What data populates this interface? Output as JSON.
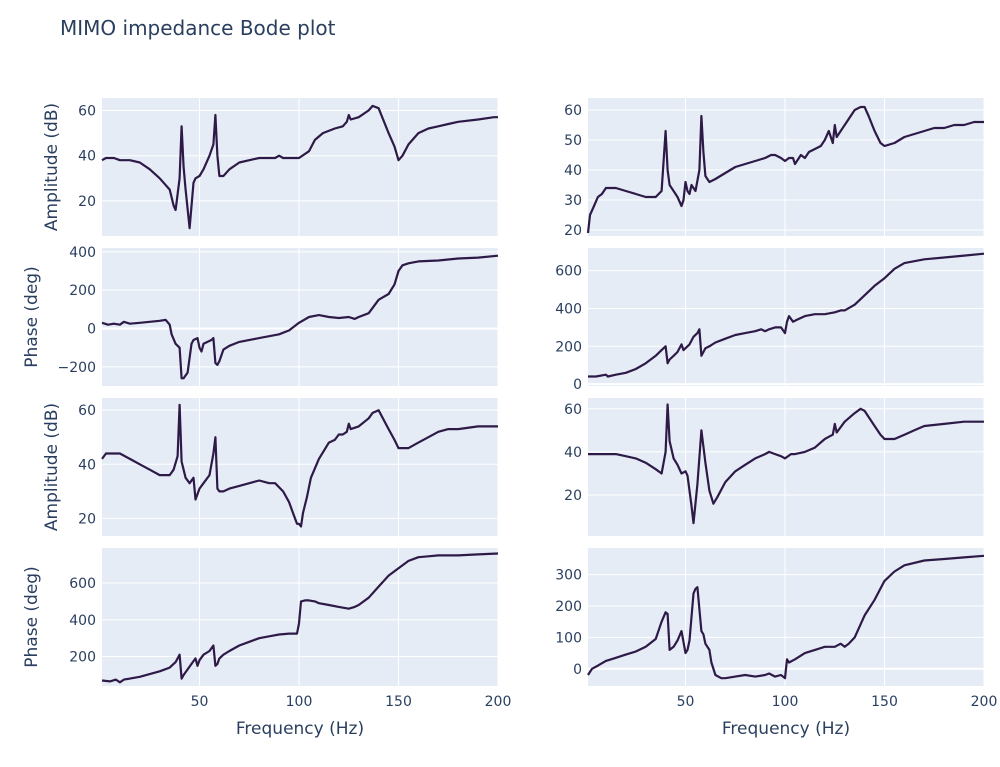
{
  "title": "MIMO impedance Bode plot",
  "colors": {
    "trace": "#2e1a47",
    "panel_bg": "#e5ecf6",
    "text": "#2a3f5f"
  },
  "chart_data": [
    {
      "type": "line",
      "row": 0,
      "col": 0,
      "ylabel": "Amplitude (dB)",
      "xlabel": "",
      "xlim": [
        1,
        200
      ],
      "ylim": [
        4.5,
        65.5
      ],
      "yticks": [
        20,
        40,
        60
      ],
      "xticks": [
        50,
        100,
        150,
        200
      ],
      "show_xticks": false,
      "x": [
        1,
        3,
        7,
        10,
        15,
        20,
        25,
        30,
        35,
        37,
        38,
        40,
        41,
        42,
        43,
        45,
        47,
        48,
        50,
        52,
        55,
        57,
        58,
        59,
        60,
        62,
        65,
        70,
        75,
        80,
        85,
        88,
        90,
        92,
        95,
        100,
        105,
        108,
        112,
        118,
        122,
        124,
        125,
        126,
        130,
        135,
        137,
        140,
        145,
        148,
        150,
        152,
        155,
        160,
        165,
        170,
        175,
        180,
        190,
        198,
        200
      ],
      "y": [
        38,
        39,
        39,
        38,
        38,
        37,
        34,
        30,
        25,
        18,
        16,
        30,
        53,
        35,
        25,
        8,
        28,
        30,
        31,
        34,
        40,
        45,
        58,
        40,
        31,
        31,
        34,
        37,
        38,
        39,
        39,
        39,
        40,
        39,
        39,
        39,
        42,
        47,
        50,
        52,
        53,
        55,
        58,
        56,
        57,
        60,
        62,
        61,
        50,
        44,
        38,
        40,
        45,
        50,
        52,
        53,
        54,
        55,
        56,
        57,
        57
      ]
    },
    {
      "type": "line",
      "row": 0,
      "col": 1,
      "ylabel": "",
      "xlabel": "",
      "xlim": [
        1,
        200
      ],
      "ylim": [
        18,
        64
      ],
      "yticks": [
        20,
        30,
        40,
        50,
        60
      ],
      "xticks": [
        50,
        100,
        150,
        200
      ],
      "show_xticks": false,
      "x": [
        1,
        2,
        4,
        6,
        8,
        10,
        15,
        20,
        25,
        30,
        35,
        38,
        40,
        41,
        42,
        44,
        46,
        48,
        49,
        50,
        51,
        52,
        53,
        55,
        57,
        58,
        59,
        60,
        62,
        65,
        70,
        75,
        80,
        85,
        90,
        93,
        95,
        98,
        100,
        102,
        104,
        105,
        108,
        110,
        112,
        115,
        118,
        120,
        122,
        124,
        125,
        126,
        128,
        130,
        135,
        138,
        140,
        142,
        145,
        148,
        150,
        155,
        160,
        165,
        170,
        175,
        180,
        185,
        190,
        195,
        200
      ],
      "y": [
        19,
        25,
        28,
        31,
        32,
        34,
        34,
        33,
        32,
        31,
        31,
        33,
        53,
        40,
        35,
        33,
        31,
        28,
        30,
        36,
        33,
        32,
        35,
        33,
        40,
        58,
        46,
        38,
        36,
        37,
        39,
        41,
        42,
        43,
        44,
        45,
        45,
        44,
        43,
        44,
        44,
        42,
        45,
        44,
        46,
        47,
        48,
        50,
        53,
        49,
        55,
        51,
        53,
        55,
        60,
        61,
        61,
        58,
        53,
        49,
        48,
        49,
        51,
        52,
        53,
        54,
        54,
        55,
        55,
        56,
        56
      ]
    },
    {
      "type": "line",
      "row": 1,
      "col": 0,
      "ylabel": "Phase (deg)",
      "xlabel": "",
      "xlim": [
        1,
        200
      ],
      "ylim": [
        -300,
        420
      ],
      "yticks": [
        -200,
        0,
        200,
        400
      ],
      "ytick_labels": [
        "−200",
        "0",
        "200",
        "400"
      ],
      "xticks": [
        50,
        100,
        150,
        200
      ],
      "show_xticks": false,
      "x": [
        1,
        4,
        7,
        10,
        12,
        15,
        20,
        30,
        33,
        35,
        36,
        38,
        40,
        41,
        42,
        44,
        46,
        47,
        49,
        50,
        51,
        52,
        54,
        56,
        57,
        58,
        59,
        60,
        62,
        65,
        70,
        80,
        90,
        95,
        100,
        105,
        110,
        115,
        120,
        125,
        128,
        130,
        135,
        140,
        145,
        148,
        150,
        152,
        155,
        160,
        170,
        180,
        190,
        200
      ],
      "y": [
        30,
        20,
        25,
        20,
        35,
        25,
        30,
        40,
        45,
        20,
        -30,
        -80,
        -100,
        -260,
        -260,
        -230,
        -80,
        -60,
        -50,
        -100,
        -120,
        -80,
        -70,
        -60,
        -50,
        -180,
        -190,
        -170,
        -110,
        -90,
        -70,
        -50,
        -30,
        -10,
        30,
        60,
        70,
        60,
        55,
        60,
        50,
        60,
        80,
        150,
        180,
        230,
        300,
        330,
        340,
        350,
        355,
        365,
        370,
        380
      ]
    },
    {
      "type": "line",
      "row": 1,
      "col": 1,
      "ylabel": "",
      "xlabel": "",
      "xlim": [
        1,
        200
      ],
      "ylim": [
        -10,
        720
      ],
      "yticks": [
        0,
        200,
        400,
        600
      ],
      "xticks": [
        50,
        100,
        150,
        200
      ],
      "show_xticks": false,
      "x": [
        1,
        5,
        10,
        11,
        15,
        20,
        25,
        30,
        35,
        38,
        40,
        41,
        42,
        44,
        46,
        48,
        49,
        50,
        52,
        54,
        56,
        57,
        58,
        59,
        60,
        62,
        65,
        70,
        75,
        80,
        85,
        88,
        90,
        92,
        95,
        98,
        100,
        101,
        102,
        104,
        106,
        110,
        115,
        120,
        125,
        128,
        130,
        135,
        140,
        145,
        150,
        155,
        160,
        165,
        170,
        180,
        190,
        200
      ],
      "y": [
        40,
        40,
        50,
        40,
        50,
        60,
        80,
        110,
        150,
        180,
        200,
        110,
        130,
        150,
        170,
        210,
        180,
        190,
        210,
        250,
        270,
        290,
        150,
        170,
        190,
        200,
        220,
        240,
        260,
        270,
        280,
        290,
        280,
        290,
        300,
        300,
        270,
        330,
        360,
        330,
        340,
        360,
        370,
        370,
        380,
        390,
        390,
        420,
        470,
        520,
        560,
        610,
        640,
        650,
        660,
        670,
        680,
        690
      ]
    },
    {
      "type": "line",
      "row": 2,
      "col": 0,
      "ylabel": "Amplitude (dB)",
      "xlabel": "",
      "xlim": [
        1,
        200
      ],
      "ylim": [
        13.5,
        64.5
      ],
      "yticks": [
        20,
        40,
        60
      ],
      "xticks": [
        50,
        100,
        150,
        200
      ],
      "show_xticks": false,
      "x": [
        1,
        3,
        5,
        10,
        15,
        20,
        25,
        30,
        35,
        37,
        39,
        40,
        41,
        42,
        43,
        45,
        47,
        48,
        49,
        50,
        52,
        55,
        57,
        58,
        59,
        60,
        62,
        65,
        70,
        75,
        80,
        85,
        88,
        92,
        95,
        97,
        99,
        100,
        101,
        102,
        104,
        106,
        110,
        115,
        118,
        120,
        122,
        124,
        125,
        126,
        130,
        135,
        137,
        140,
        145,
        148,
        150,
        155,
        160,
        165,
        170,
        175,
        180,
        190,
        200
      ],
      "y": [
        42,
        44,
        44,
        44,
        42,
        40,
        38,
        36,
        36,
        38,
        43,
        62,
        41,
        38,
        35,
        33,
        35,
        27,
        29,
        31,
        33,
        36,
        44,
        50,
        31,
        30,
        30,
        31,
        32,
        33,
        34,
        33,
        33,
        30,
        26,
        22,
        18,
        18,
        17,
        22,
        28,
        35,
        42,
        48,
        49,
        51,
        51,
        52,
        55,
        53,
        54,
        57,
        59,
        60,
        53,
        49,
        46,
        46,
        48,
        50,
        52,
        53,
        53,
        54,
        54
      ]
    },
    {
      "type": "line",
      "row": 2,
      "col": 1,
      "ylabel": "",
      "xlabel": "",
      "xlim": [
        1,
        200
      ],
      "ylim": [
        1,
        65
      ],
      "yticks": [
        20,
        40,
        60
      ],
      "xticks": [
        50,
        100,
        150,
        200
      ],
      "show_xticks": false,
      "x": [
        1,
        5,
        10,
        15,
        20,
        25,
        30,
        35,
        38,
        40,
        41,
        42,
        44,
        46,
        48,
        50,
        51,
        52,
        53,
        54,
        56,
        58,
        60,
        62,
        64,
        66,
        70,
        75,
        80,
        85,
        90,
        92,
        95,
        98,
        100,
        103,
        105,
        110,
        115,
        120,
        122,
        124,
        125,
        126,
        130,
        135,
        138,
        140,
        145,
        148,
        150,
        155,
        160,
        165,
        170,
        180,
        190,
        200
      ],
      "y": [
        39,
        39,
        39,
        39,
        38,
        37,
        35,
        32,
        30,
        40,
        62,
        45,
        37,
        34,
        30,
        31,
        29,
        22,
        15,
        7,
        25,
        50,
        35,
        22,
        16,
        19,
        26,
        31,
        34,
        37,
        39,
        40,
        39,
        38,
        37,
        39,
        39,
        40,
        42,
        46,
        47,
        48,
        53,
        49,
        54,
        58,
        60,
        59,
        52,
        48,
        46,
        46,
        48,
        50,
        52,
        53,
        54,
        54
      ]
    },
    {
      "type": "line",
      "row": 3,
      "col": 0,
      "ylabel": "Phase (deg)",
      "xlabel": "Frequency (Hz)",
      "xlim": [
        1,
        200
      ],
      "ylim": [
        40,
        790
      ],
      "yticks": [
        200,
        400,
        600
      ],
      "xticks": [
        50,
        100,
        150,
        200
      ],
      "show_xticks": true,
      "x": [
        1,
        5,
        8,
        10,
        12,
        15,
        20,
        30,
        35,
        38,
        40,
        41,
        42,
        44,
        46,
        48,
        49,
        50,
        52,
        55,
        57,
        58,
        59,
        60,
        62,
        65,
        70,
        75,
        80,
        85,
        90,
        95,
        99,
        100,
        101,
        103,
        105,
        108,
        110,
        115,
        120,
        125,
        128,
        130,
        135,
        140,
        145,
        150,
        155,
        160,
        165,
        170,
        180,
        190,
        200
      ],
      "y": [
        70,
        65,
        75,
        60,
        75,
        80,
        90,
        120,
        140,
        170,
        210,
        80,
        100,
        130,
        160,
        190,
        150,
        180,
        210,
        230,
        260,
        150,
        160,
        190,
        210,
        230,
        260,
        280,
        300,
        310,
        320,
        325,
        325,
        380,
        500,
        505,
        505,
        500,
        490,
        480,
        470,
        460,
        470,
        480,
        520,
        580,
        640,
        680,
        720,
        740,
        745,
        750,
        750,
        755,
        760
      ]
    },
    {
      "type": "line",
      "row": 3,
      "col": 1,
      "ylabel": "",
      "xlabel": "Frequency (Hz)",
      "xlim": [
        1,
        200
      ],
      "ylim": [
        -55,
        385
      ],
      "yticks": [
        0,
        100,
        200,
        300
      ],
      "xticks": [
        50,
        100,
        150,
        200
      ],
      "show_xticks": true,
      "x": [
        1,
        3,
        6,
        10,
        15,
        20,
        25,
        30,
        35,
        38,
        40,
        41,
        42,
        44,
        46,
        48,
        50,
        51,
        52,
        54,
        55,
        56,
        58,
        59,
        60,
        62,
        63,
        65,
        68,
        70,
        75,
        80,
        85,
        90,
        92,
        95,
        98,
        100,
        101,
        102,
        105,
        110,
        115,
        120,
        125,
        128,
        130,
        132,
        135,
        140,
        145,
        150,
        155,
        160,
        170,
        180,
        190,
        200
      ],
      "y": [
        -20,
        0,
        10,
        25,
        35,
        45,
        55,
        70,
        95,
        150,
        180,
        175,
        60,
        70,
        90,
        120,
        50,
        60,
        90,
        240,
        255,
        260,
        120,
        110,
        80,
        60,
        20,
        -20,
        -30,
        -30,
        -25,
        -20,
        -25,
        -20,
        -15,
        -25,
        -20,
        -30,
        30,
        20,
        30,
        50,
        60,
        70,
        70,
        80,
        70,
        80,
        100,
        170,
        220,
        280,
        310,
        330,
        345,
        350,
        355,
        360
      ]
    }
  ]
}
